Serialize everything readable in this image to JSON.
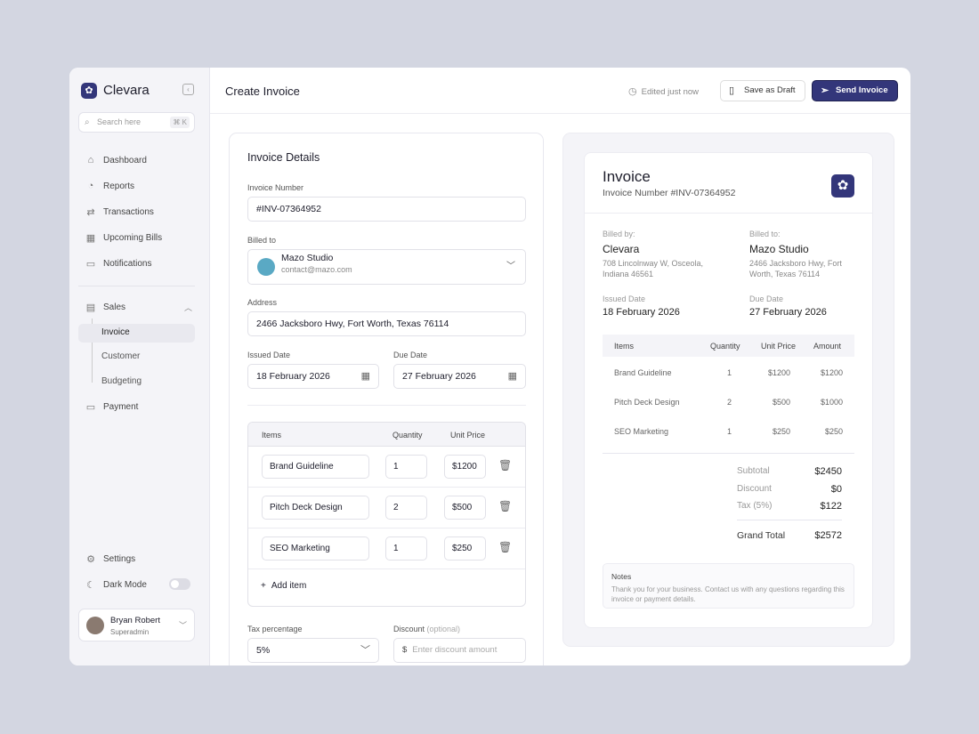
{
  "brand": "Clevara",
  "search": {
    "placeholder": "Search here",
    "shortcut": "⌘ K"
  },
  "nav": [
    {
      "label": "Dashboard",
      "icon": "home-icon"
    },
    {
      "label": "Reports",
      "icon": "pie-icon"
    },
    {
      "label": "Transactions",
      "icon": "transfer-icon"
    },
    {
      "label": "Upcoming Bills",
      "icon": "calendar-icon"
    },
    {
      "label": "Notifications",
      "icon": "bell-icon"
    }
  ],
  "sales": {
    "label": "Sales",
    "children": [
      "Invoice",
      "Customer",
      "Budgeting"
    ]
  },
  "payment": "Payment",
  "settings": "Settings",
  "dark_mode": {
    "label": "Dark Mode",
    "on": false
  },
  "user": {
    "name": "Bryan Robert",
    "role": "Superadmin"
  },
  "header": {
    "title": "Create Invoice",
    "edited": "Edited just now",
    "draft": "Save as Draft",
    "send": "Send Invoice"
  },
  "form": {
    "section": "Invoice Details",
    "number_label": "Invoice Number",
    "number": "#INV-07364952",
    "billed_label": "Billed to",
    "billed_name": "Mazo Studio",
    "billed_email": "contact@mazo.com",
    "address_label": "Address",
    "address": "2466 Jacksboro Hwy, Fort Worth, Texas 76114",
    "issued_label": "Issued Date",
    "issued": "18 February 2026",
    "due_label": "Due Date",
    "due": "27 February 2026",
    "cols": [
      "Items",
      "Quantity",
      "Unit Price"
    ],
    "items": [
      {
        "name": "Brand Guideline",
        "qty": "1",
        "price": "$1200"
      },
      {
        "name": "Pitch Deck Design",
        "qty": "2",
        "price": "$500"
      },
      {
        "name": "SEO Marketing",
        "qty": "1",
        "price": "$250"
      }
    ],
    "add_item": "Add item",
    "tax_label": "Tax percentage",
    "tax": "5%",
    "discount_label": "Discount",
    "discount_optional": "(optional)",
    "discount_currency": "$",
    "discount_placeholder": "Enter discount amount"
  },
  "preview": {
    "title": "Invoice",
    "number": "Invoice Number #INV-07364952",
    "billed_by_label": "Billed by:",
    "billed_by": "Clevara",
    "billed_by_addr": "708 Lincolnway W, Osceola, Indiana 46561",
    "billed_to_label": "Billed to:",
    "billed_to": "Mazo Studio",
    "billed_to_addr": "2466 Jacksboro Hwy, Fort Worth, Texas 76114",
    "issued_label": "Issued Date",
    "issued": "18 February 2026",
    "due_label": "Due Date",
    "due": "27 February 2026",
    "cols": [
      "Items",
      "Quantity",
      "Unit Price",
      "Amount"
    ],
    "rows": [
      [
        "Brand Guideline",
        "1",
        "$1200",
        "$1200"
      ],
      [
        "Pitch Deck Design",
        "2",
        "$500",
        "$1000"
      ],
      [
        "SEO Marketing",
        "1",
        "$250",
        "$250"
      ]
    ],
    "subtotal_label": "Subtotal",
    "subtotal": "$2450",
    "discount_label": "Discount",
    "discount": "$0",
    "tax_label": "Tax (5%)",
    "tax": "$122",
    "total_label": "Grand Total",
    "total": "$2572",
    "notes_label": "Notes",
    "notes": "Thank you for your business. Contact us with any questions regarding this invoice or payment details."
  }
}
